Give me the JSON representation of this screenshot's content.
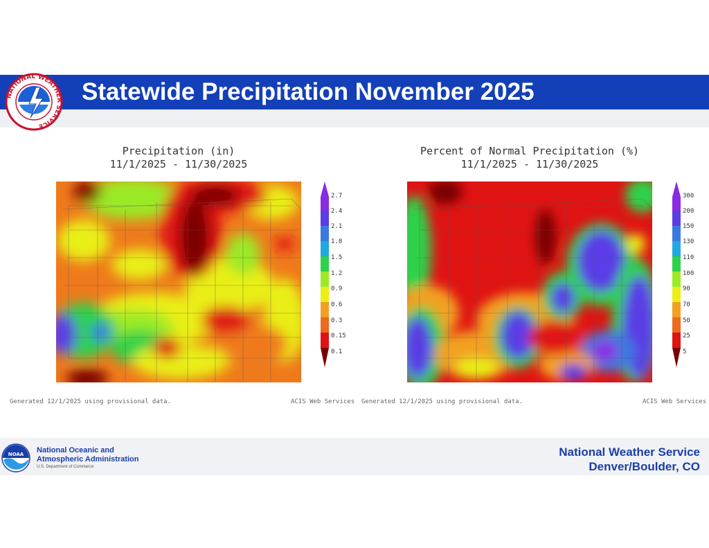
{
  "header": {
    "title": "Statewide Precipitation November 2025",
    "logo_text": "NATIONAL WEATHER SERVICE",
    "banner_color": "#1340b8"
  },
  "maps": [
    {
      "title": "Precipitation (in)",
      "date_range": "11/1/2025 - 11/30/2025",
      "footnote_left": "Generated 12/1/2025 using provisional data.",
      "footnote_right": "ACIS Web Services",
      "legend": {
        "labels": [
          "2.7",
          "2.4",
          "2.1",
          "1.8",
          "1.5",
          "1.2",
          "0.9",
          "0.6",
          "0.3",
          "0.15",
          "0.1"
        ],
        "colors": [
          "#8a2be2",
          "#5a3de6",
          "#3a7ae0",
          "#21a8e0",
          "#2fd14a",
          "#9bea27",
          "#e9ef17",
          "#f2a022",
          "#ee6a1c",
          "#e01313",
          "#7a0000"
        ]
      }
    },
    {
      "title": "Percent of Normal Precipitation (%)",
      "date_range": "11/1/2025 - 11/30/2025",
      "footnote_left": "Generated 12/1/2025 using provisional data.",
      "footnote_right": "ACIS Web Services",
      "legend": {
        "labels": [
          "300",
          "200",
          "150",
          "130",
          "110",
          "100",
          "90",
          "70",
          "50",
          "25",
          "5"
        ],
        "colors": [
          "#8a2be2",
          "#5a3de6",
          "#3a7ae0",
          "#21a8e0",
          "#2fd14a",
          "#9bea27",
          "#e9ef17",
          "#f2a022",
          "#ee6a1c",
          "#e01313",
          "#7a0000"
        ]
      }
    }
  ],
  "footer": {
    "noaa_logo_text": "NOAA",
    "noaa_name_line1": "National Oceanic and",
    "noaa_name_line2": "Atmospheric Administration",
    "noaa_dept": "U.S. Department of Commerce",
    "office_line1": "National Weather Service",
    "office_line2": "Denver/Boulder, CO"
  }
}
